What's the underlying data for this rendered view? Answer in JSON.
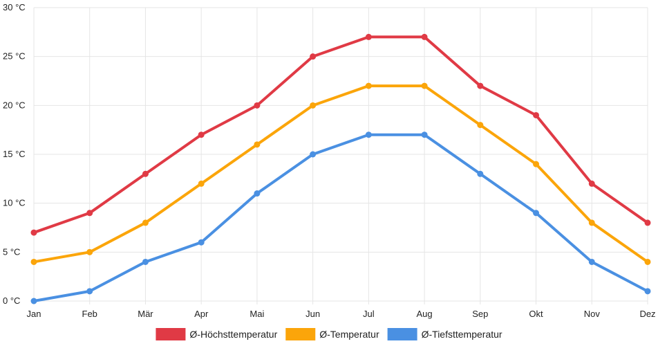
{
  "chart_data": {
    "type": "line",
    "title": "",
    "xlabel": "",
    "ylabel": "",
    "categories": [
      "Jan",
      "Feb",
      "Mär",
      "Apr",
      "Mai",
      "Jun",
      "Jul",
      "Aug",
      "Sep",
      "Okt",
      "Nov",
      "Dez"
    ],
    "ylim": [
      0,
      30
    ],
    "yticks": [
      0,
      5,
      10,
      15,
      20,
      25,
      30
    ],
    "y_tick_labels": [
      "0 °C",
      "5 °C",
      "10 °C",
      "15 °C",
      "20 °C",
      "25 °C",
      "30 °C"
    ],
    "grid": true,
    "legend_position": "bottom",
    "series": [
      {
        "name": "Ø-Höchsttemperatur",
        "color": "#e03a45",
        "values": [
          7,
          9,
          13,
          17,
          20,
          25,
          27,
          27,
          22,
          19,
          12,
          8
        ]
      },
      {
        "name": "Ø-Temperatur",
        "color": "#fba50a",
        "values": [
          4,
          5,
          8,
          12,
          16,
          20,
          22,
          22,
          18,
          14,
          8,
          4
        ]
      },
      {
        "name": "Ø-Tiefsttemperatur",
        "color": "#4a90e2",
        "values": [
          0,
          1,
          4,
          6,
          11,
          15,
          17,
          17,
          13,
          9,
          4,
          1
        ]
      }
    ]
  }
}
